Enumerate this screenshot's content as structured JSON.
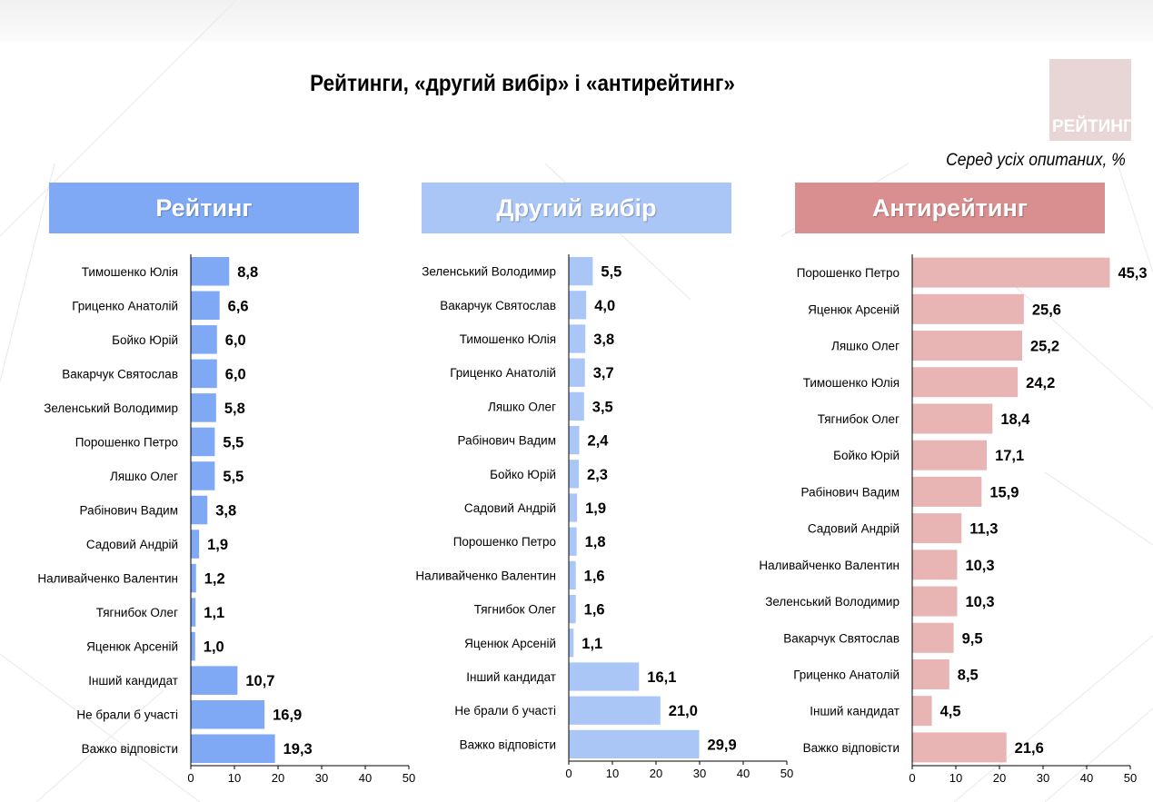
{
  "page": {
    "title": "Рейтинги, «другий вибір» і «антирейтинг»",
    "subtitle": "Серед усіх опитаних, %",
    "logo_text": "РЕЙТИНГ"
  },
  "colors": {
    "rating": "#7fa9f5",
    "rating_header": "#7fa9f5",
    "second": "#a9c6f7",
    "second_header": "#a9c6f7",
    "anti": "#e8b4b4",
    "anti_header": "#d98f8f"
  },
  "chart_data": [
    {
      "type": "bar",
      "orientation": "horizontal",
      "title": "Рейтинг",
      "categories": [
        "Тимошенко Юлія",
        "Гриценко Анатолій",
        "Бойко Юрій",
        "Вакарчук Святослав",
        "Зеленський Володимир",
        "Порошенко Петро",
        "Ляшко Олег",
        "Рабінович Вадим",
        "Садовий Андрій",
        "Наливайченко Валентин",
        "Тягнибок Олег",
        "Яценюк Арсеній",
        "Інший кандидат",
        "Не брали б участі",
        "Важко відповісти"
      ],
      "values": [
        8.8,
        6.6,
        6.0,
        6.0,
        5.8,
        5.5,
        5.5,
        3.8,
        1.9,
        1.2,
        1.1,
        1.0,
        10.7,
        16.9,
        19.3
      ],
      "value_labels": [
        "8,8",
        "6,6",
        "6,0",
        "6,0",
        "5,8",
        "5,5",
        "5,5",
        "3,8",
        "1,9",
        "1,2",
        "1,1",
        "1,0",
        "10,7",
        "16,9",
        "19,3"
      ],
      "xlim": [
        0,
        50
      ],
      "xticks": [
        "0",
        "10",
        "20",
        "30",
        "40",
        "50"
      ],
      "grid": false
    },
    {
      "type": "bar",
      "orientation": "horizontal",
      "title": "Другий вибір",
      "categories": [
        "Зеленський Володимир",
        "Вакарчук Святослав",
        "Тимошенко Юлія",
        "Гриценко Анатолій",
        "Ляшко Олег",
        "Рабінович Вадим",
        "Бойко Юрій",
        "Садовий Андрій",
        "Порошенко Петро",
        "Наливайченко Валентин",
        "Тягнибок Олег",
        "Яценюк Арсеній",
        "Інший кандидат",
        "Не брали б участі",
        "Важко відповісти"
      ],
      "values": [
        5.5,
        4.0,
        3.8,
        3.7,
        3.5,
        2.4,
        2.3,
        1.9,
        1.8,
        1.6,
        1.6,
        1.1,
        16.1,
        21.0,
        29.9
      ],
      "value_labels": [
        "5,5",
        "4,0",
        "3,8",
        "3,7",
        "3,5",
        "2,4",
        "2,3",
        "1,9",
        "1,8",
        "1,6",
        "1,6",
        "1,1",
        "16,1",
        "21,0",
        "29,9"
      ],
      "xlim": [
        0,
        50
      ],
      "xticks": [
        "0",
        "10",
        "20",
        "30",
        "40",
        "50"
      ],
      "grid": false
    },
    {
      "type": "bar",
      "orientation": "horizontal",
      "title": "Антирейтинг",
      "categories": [
        "Порошенко Петро",
        "Яценюк Арсеній",
        "Ляшко Олег",
        "Тимошенко Юлія",
        "Тягнибок Олег",
        "Бойко Юрій",
        "Рабінович Вадим",
        "Садовий Андрій",
        "Наливайченко Валентин",
        "Зеленський Володимир",
        "Вакарчук Святослав",
        "Гриценко Анатолій",
        "Інший кандидат",
        "Важко відповісти"
      ],
      "values": [
        45.3,
        25.6,
        25.2,
        24.2,
        18.4,
        17.1,
        15.9,
        11.3,
        10.3,
        10.3,
        9.5,
        8.5,
        4.5,
        21.6
      ],
      "value_labels": [
        "45,3",
        "25,6",
        "25,2",
        "24,2",
        "18,4",
        "17,1",
        "15,9",
        "11,3",
        "10,3",
        "10,3",
        "9,5",
        "8,5",
        "4,5",
        "21,6"
      ],
      "xlim": [
        0,
        50
      ],
      "xticks": [
        "0",
        "10",
        "20",
        "30",
        "40",
        "50"
      ],
      "grid": false
    }
  ]
}
